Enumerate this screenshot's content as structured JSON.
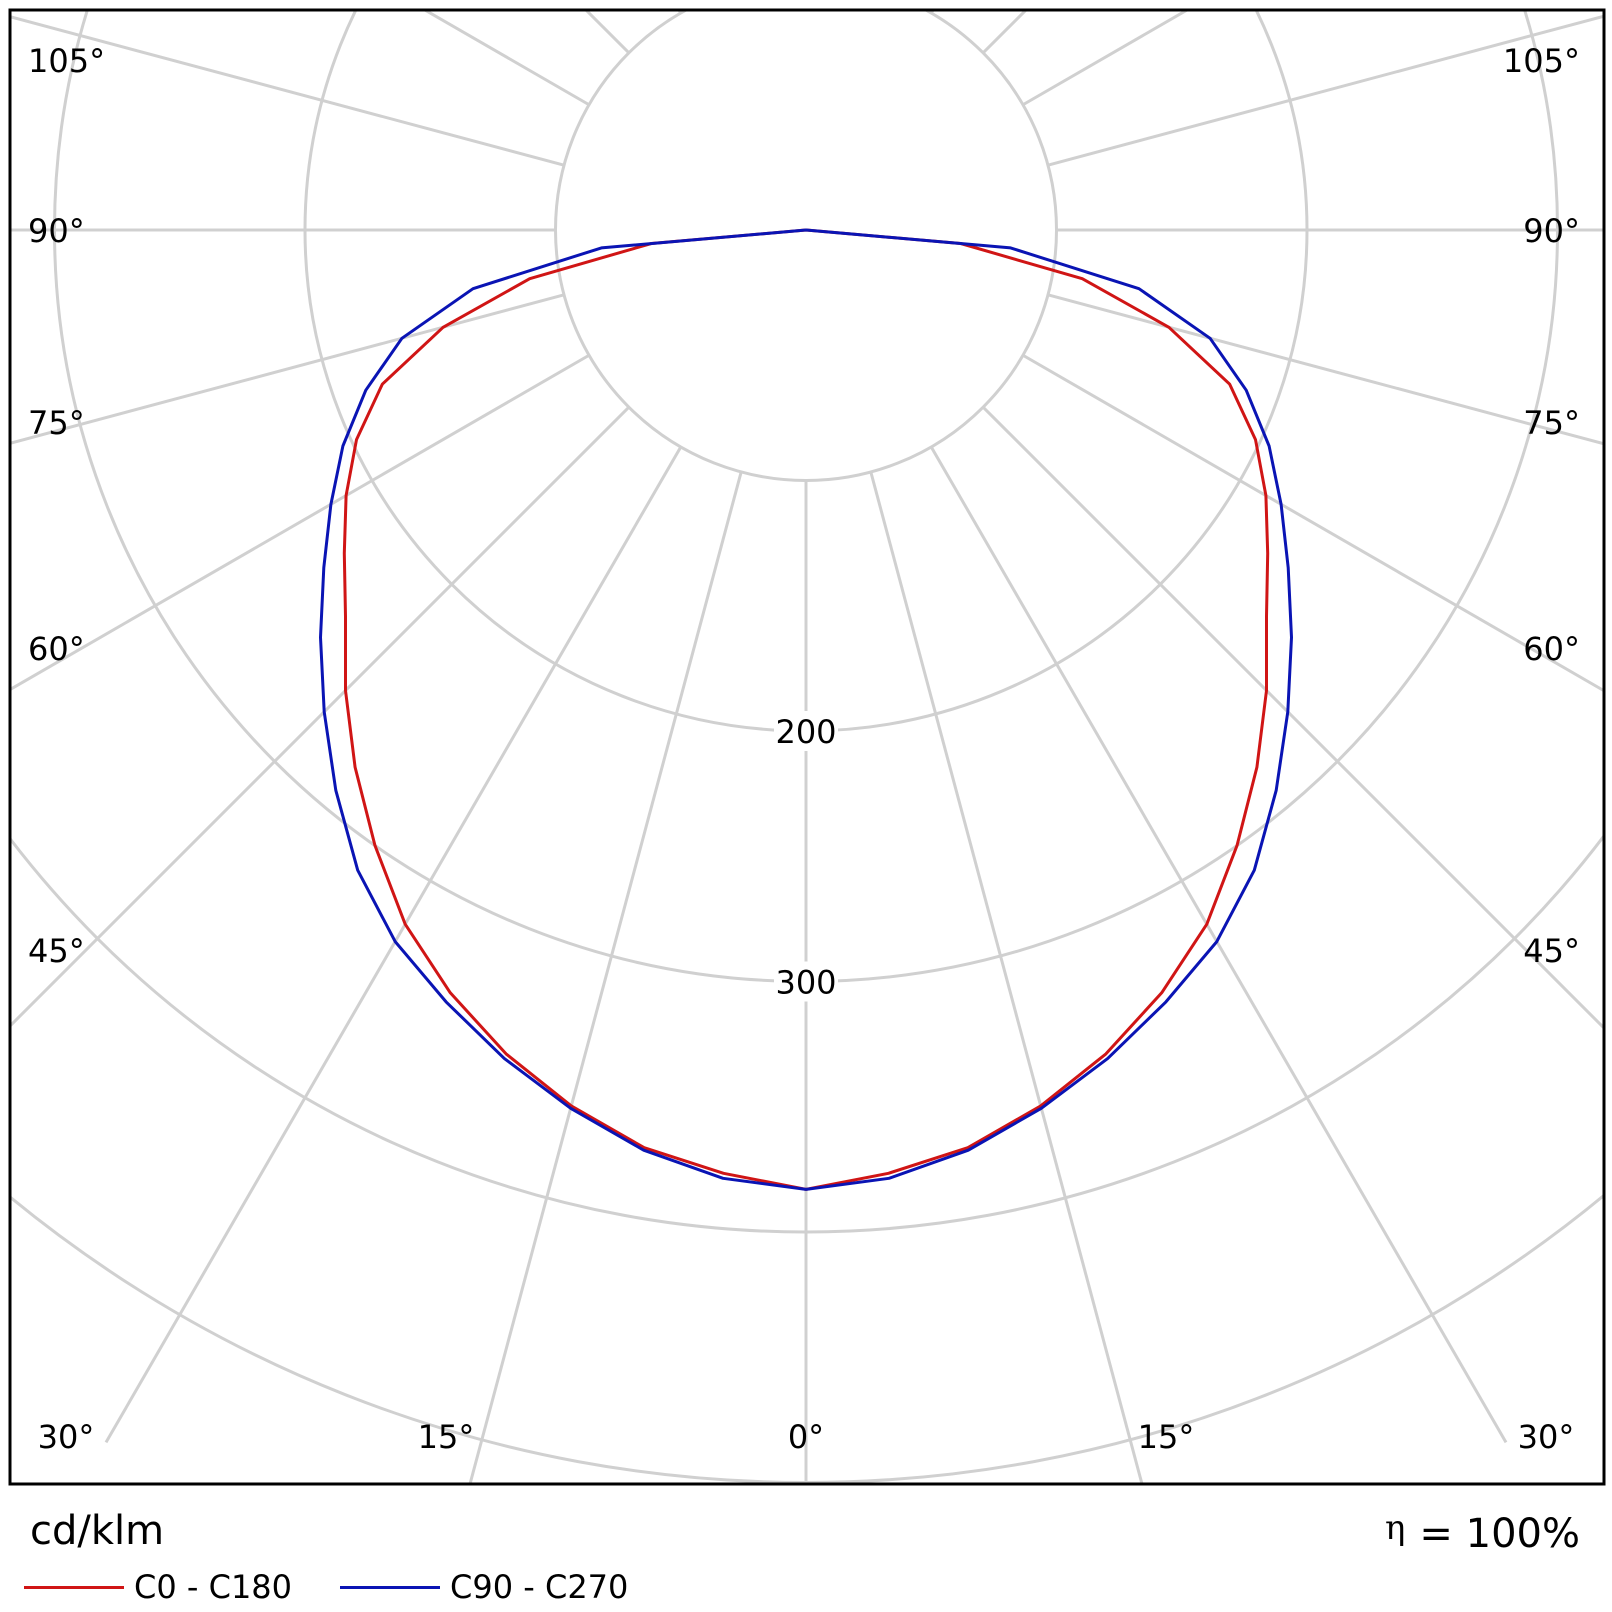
{
  "chart_data": {
    "type": "polar",
    "unit": "cd/klm",
    "efficiency_symbol": "η",
    "efficiency_value": "= 100%",
    "angle_labels": [
      "0°",
      "15°",
      "30°",
      "45°",
      "60°",
      "75°",
      "90°",
      "105°"
    ],
    "radial_labels": [
      "200",
      "300"
    ],
    "radial_rings": [
      100,
      200,
      300,
      400,
      500
    ],
    "gamma_deg": [
      0,
      5,
      10,
      15,
      20,
      25,
      30,
      35,
      40,
      45,
      50,
      55,
      60,
      65,
      70,
      75,
      80,
      85,
      90
    ],
    "series": [
      {
        "name": "C0 - C180",
        "color": "#d01515",
        "values": [
          383,
          378,
          372,
          362,
          350,
          336,
          320,
          300,
          280,
          260,
          240,
          225,
          212,
          198,
          180,
          150,
          112,
          62,
          0
        ]
      },
      {
        "name": "C90 - C270",
        "color": "#0a14b4",
        "values": [
          383,
          380,
          373,
          363,
          352,
          340,
          328,
          312,
          292,
          272,
          253,
          235,
          219,
          204,
          187,
          167,
          135,
          82,
          0
        ]
      }
    ],
    "grid_color": "#d0d0d0"
  }
}
